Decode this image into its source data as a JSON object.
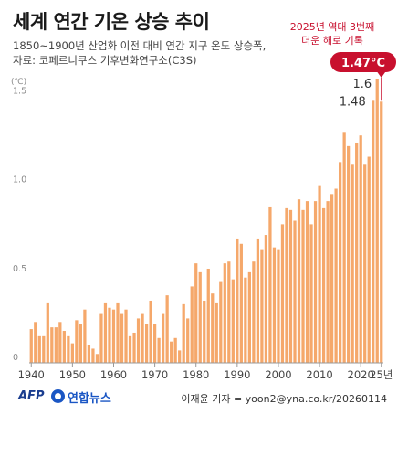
{
  "title": "세계 연간 기온 상승 추이",
  "subtitle_line1": "1850~1900년 산업화 이전 대비 연간 지구 온도 상승폭,",
  "subtitle_line2": "자료: 코페르니쿠스 기후변화연구소(C3S)",
  "callout": {
    "line1": "2025년 역대 3번째",
    "line2": "더운 해로 기록",
    "badge": "1.47°C"
  },
  "footer": {
    "afp": "AFP",
    "yonhap": "연합뉴스",
    "credit": "이재윤 기자 = yoon2@yna.co.kr/20260114"
  },
  "colors": {
    "bar": "#f5a86b",
    "highlight": "#c8102e",
    "axis": "#999999"
  },
  "chart_data": {
    "type": "bar",
    "ylabel": "(℃)",
    "ylim": [
      0,
      1.6
    ],
    "yticks": [
      0,
      0.5,
      1.0,
      1.5
    ],
    "ytick_labels": [
      "0",
      "0.5",
      "1.0",
      "1.5"
    ],
    "x_tick_labels": [
      "1940",
      "1950",
      "1960",
      "1970",
      "1980",
      "1990",
      "2000",
      "2010",
      "2020",
      "25년"
    ],
    "x_tick_years": [
      1940,
      1950,
      1960,
      1970,
      1980,
      1990,
      2000,
      2010,
      2020,
      2025
    ],
    "years": [
      1940,
      1941,
      1942,
      1943,
      1944,
      1945,
      1946,
      1947,
      1948,
      1949,
      1950,
      1951,
      1952,
      1953,
      1954,
      1955,
      1956,
      1957,
      1958,
      1959,
      1960,
      1961,
      1962,
      1963,
      1964,
      1965,
      1966,
      1967,
      1968,
      1969,
      1970,
      1971,
      1972,
      1973,
      1974,
      1975,
      1976,
      1977,
      1978,
      1979,
      1980,
      1981,
      1982,
      1983,
      1984,
      1985,
      1986,
      1987,
      1988,
      1989,
      1990,
      1991,
      1992,
      1993,
      1994,
      1995,
      1996,
      1997,
      1998,
      1999,
      2000,
      2001,
      2002,
      2003,
      2004,
      2005,
      2006,
      2007,
      2008,
      2009,
      2010,
      2011,
      2012,
      2013,
      2014,
      2015,
      2016,
      2017,
      2018,
      2019,
      2020,
      2021,
      2022,
      2023,
      2024,
      2025
    ],
    "values": [
      0.19,
      0.23,
      0.15,
      0.15,
      0.34,
      0.2,
      0.2,
      0.23,
      0.18,
      0.15,
      0.11,
      0.24,
      0.22,
      0.3,
      0.1,
      0.08,
      0.05,
      0.28,
      0.34,
      0.31,
      0.3,
      0.34,
      0.28,
      0.3,
      0.15,
      0.17,
      0.25,
      0.28,
      0.22,
      0.35,
      0.22,
      0.14,
      0.28,
      0.38,
      0.12,
      0.14,
      0.07,
      0.33,
      0.25,
      0.43,
      0.56,
      0.51,
      0.35,
      0.53,
      0.39,
      0.34,
      0.46,
      0.56,
      0.57,
      0.47,
      0.7,
      0.67,
      0.48,
      0.51,
      0.57,
      0.7,
      0.64,
      0.72,
      0.88,
      0.65,
      0.64,
      0.78,
      0.87,
      0.86,
      0.8,
      0.92,
      0.86,
      0.91,
      0.78,
      0.91,
      1.0,
      0.87,
      0.91,
      0.95,
      0.98,
      1.13,
      1.3,
      1.22,
      1.12,
      1.24,
      1.28,
      1.12,
      1.16,
      1.48,
      1.6,
      1.47
    ],
    "data_labels": [
      {
        "year": 2023,
        "value": 1.48,
        "text": "1.48"
      },
      {
        "year": 2024,
        "value": 1.6,
        "text": "1.6"
      },
      {
        "year": 2025,
        "value": 1.47,
        "text": "1.47°C"
      }
    ],
    "highlight_year": 2025
  }
}
